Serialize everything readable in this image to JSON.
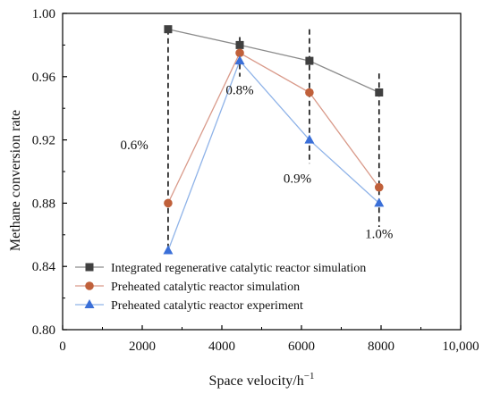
{
  "chart_data": {
    "type": "line",
    "xlabel": "Space velocity/h",
    "xlabel_sup": "−1",
    "ylabel": "Methane conversion rate",
    "xlim": [
      0,
      10000
    ],
    "ylim": [
      0.8,
      1.0
    ],
    "x_ticks": [
      0,
      2000,
      4000,
      6000,
      8000,
      10000
    ],
    "x_tick_labels": [
      "0",
      "2000",
      "4000",
      "6000",
      "8000",
      "10,000"
    ],
    "y_ticks": [
      0.8,
      0.84,
      0.88,
      0.92,
      0.96,
      1.0
    ],
    "y_tick_labels": [
      "0.80",
      "0.84",
      "0.88",
      "0.92",
      "0.96",
      "1.00"
    ],
    "grid": false,
    "legend_position": "bottom-left",
    "x": [
      2650,
      4450,
      6200,
      7950
    ],
    "series": [
      {
        "name": "Integrated regenerative catalytic reactor simulation",
        "values": [
          0.99,
          0.98,
          0.97,
          0.95
        ],
        "color": "#8c8c8c",
        "marker_color": "#404040",
        "marker": "square"
      },
      {
        "name": "Preheated catalytic reactor simulation",
        "values": [
          0.88,
          0.975,
          0.95,
          0.89
        ],
        "color": "#d99a8a",
        "marker_color": "#c0603a",
        "marker": "circle"
      },
      {
        "name": "Preheated catalytic reactor experiment",
        "values": [
          0.85,
          0.97,
          0.92,
          0.88
        ],
        "color": "#8fb3e8",
        "marker_color": "#3a6fd8",
        "marker": "triangle"
      }
    ],
    "annotations": [
      {
        "text": "0.6%",
        "x": 2650,
        "line_from": 0.99,
        "line_to": 0.85,
        "label_x": 1800,
        "label_y": 0.914
      },
      {
        "text": "0.8%",
        "x": 4450,
        "line_from": 0.985,
        "line_to": 0.96,
        "label_x": 4450,
        "label_y": 0.949
      },
      {
        "text": "0.9%",
        "x": 6200,
        "line_from": 0.99,
        "line_to": 0.905,
        "label_x": 5900,
        "label_y": 0.893
      },
      {
        "text": "1.0%",
        "x": 7950,
        "line_from": 0.962,
        "line_to": 0.865,
        "label_x": 7950,
        "label_y": 0.858
      }
    ]
  }
}
